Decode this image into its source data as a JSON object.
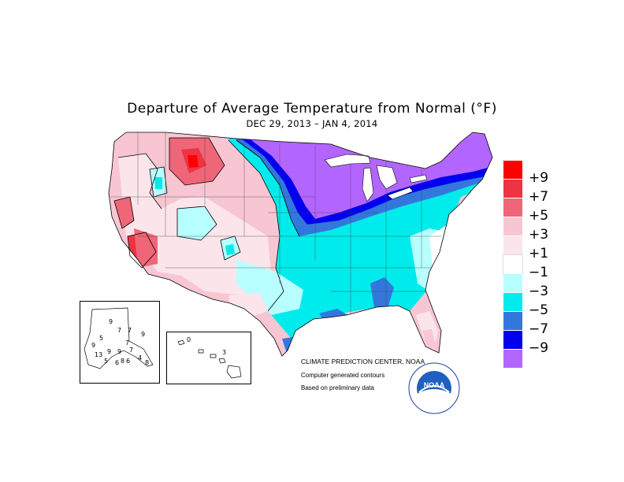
{
  "title": "Departure of Average Temperature from Normal (°F)",
  "subtitle": "DEC 29, 2013 – JAN  4, 2014",
  "legend": {
    "items": [
      {
        "label": "+9",
        "color": "#ff0000"
      },
      {
        "label": "+7",
        "color": "#ee3344"
      },
      {
        "label": "+5",
        "color": "#ee6677"
      },
      {
        "label": "+3",
        "color": "#f7c6d2"
      },
      {
        "label": "+1",
        "color": "#fbe5ea"
      },
      {
        "label": "−1",
        "color": "#ffffff"
      },
      {
        "label": "−3",
        "color": "#b8ffff"
      },
      {
        "label": "−5",
        "color": "#00ebeb"
      },
      {
        "label": "−7",
        "color": "#3377dd"
      },
      {
        "label": "−9",
        "color": "#0000ee"
      },
      {
        "label": "",
        "color": "#b366ff"
      }
    ]
  },
  "credits": {
    "line1": "CLIMATE PREDICTION CENTER, NOAA",
    "line2": "Computer generated contours",
    "line3": "Based on preliminary data"
  },
  "logo": {
    "text": "NOAA",
    "icon": "noaa-seal-icon"
  },
  "alaska_inset": {
    "labels": [
      {
        "text": "9"
      },
      {
        "text": "9"
      },
      {
        "text": "7"
      },
      {
        "text": "7"
      },
      {
        "text": "5"
      },
      {
        "text": "7"
      },
      {
        "text": "9"
      },
      {
        "text": "9"
      },
      {
        "text": "13"
      },
      {
        "text": "9"
      },
      {
        "text": "7"
      },
      {
        "text": "4"
      },
      {
        "text": "6"
      },
      {
        "text": "8"
      },
      {
        "text": "6"
      },
      {
        "text": "8"
      },
      {
        "text": "5"
      }
    ]
  },
  "hawaii_inset": {
    "labels": [
      {
        "text": "0"
      },
      {
        "text": "3"
      }
    ]
  }
}
